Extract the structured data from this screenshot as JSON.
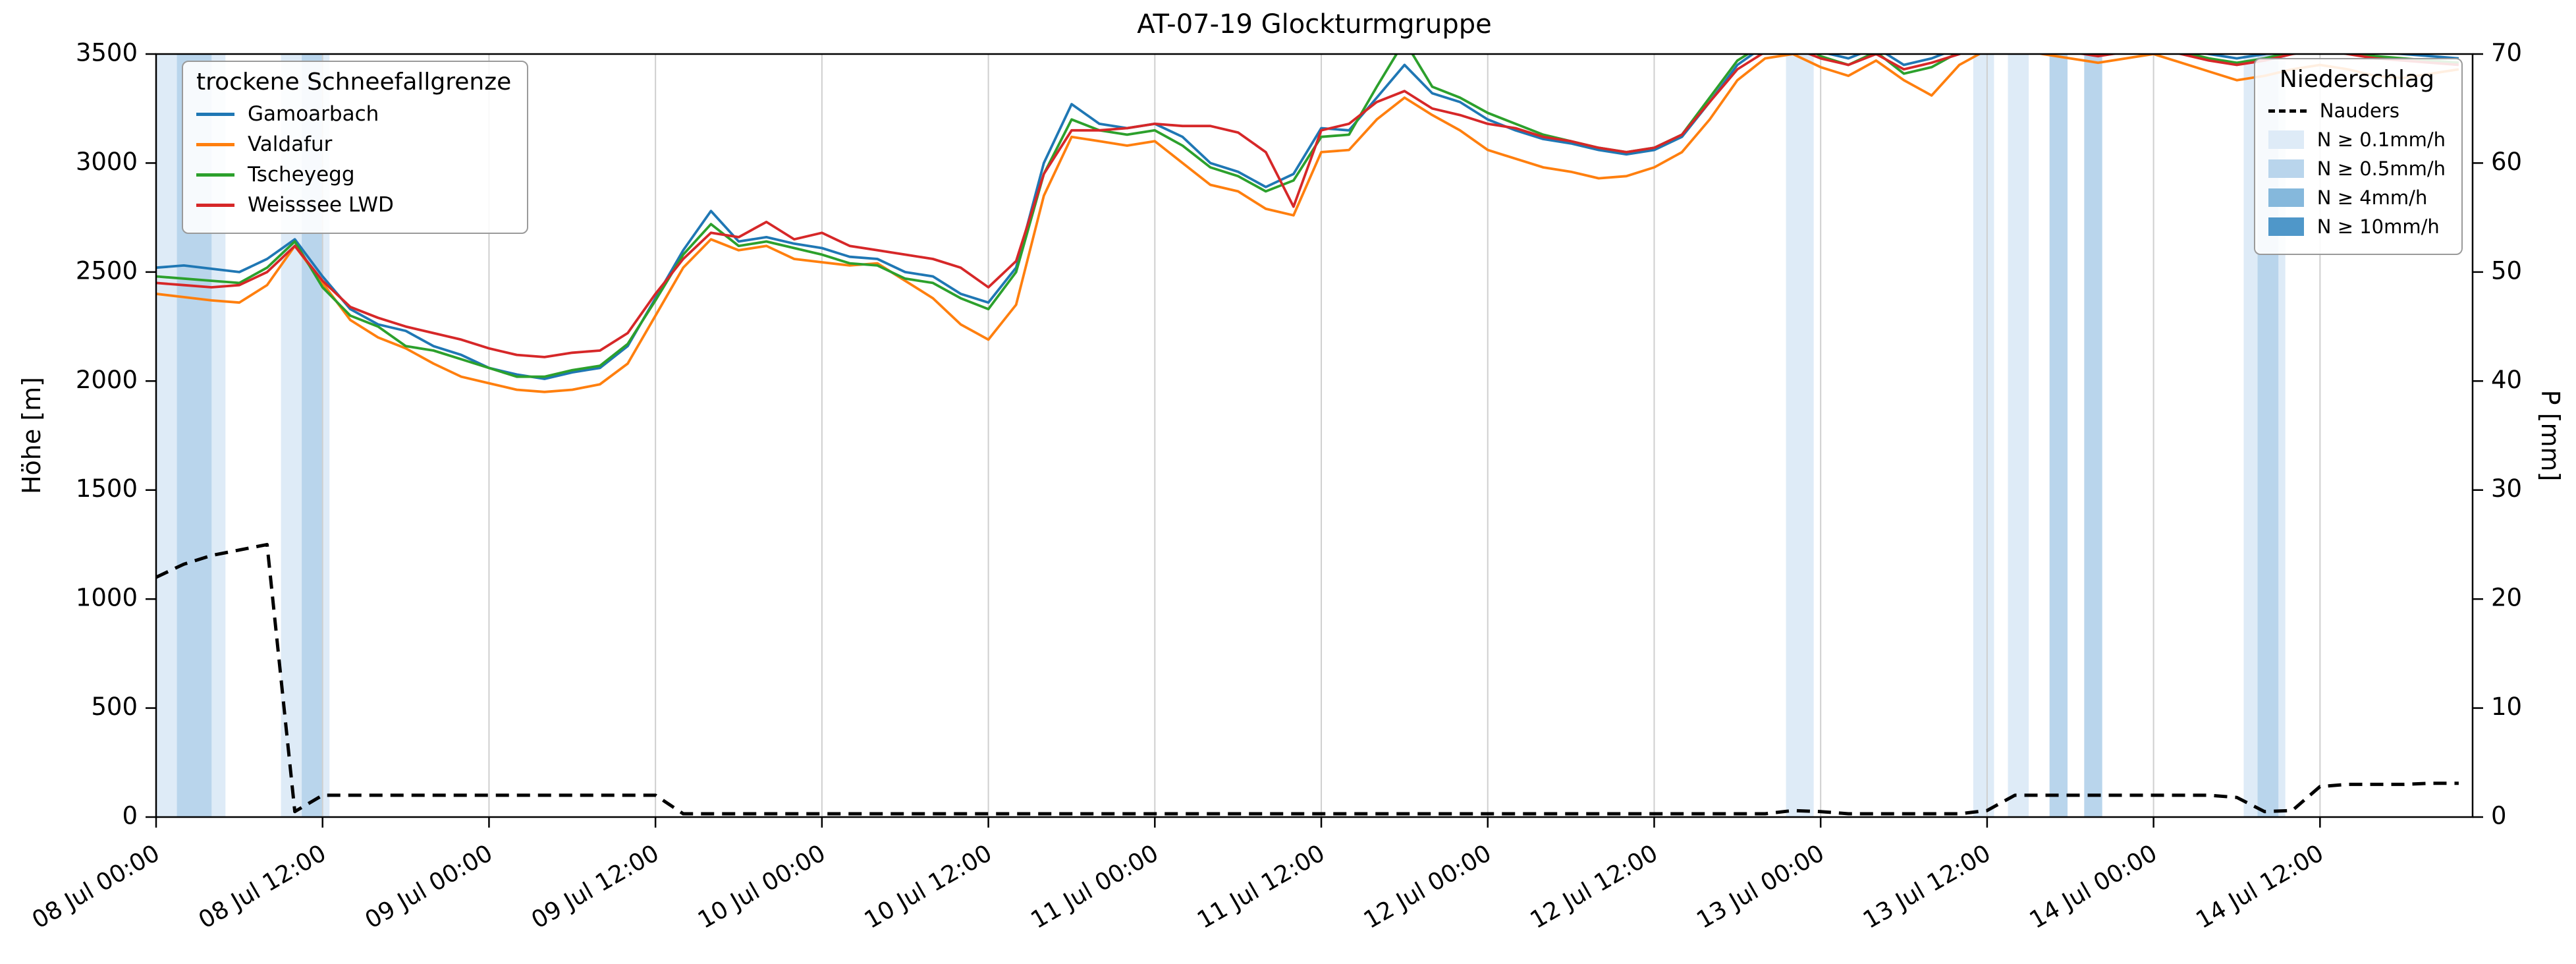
{
  "title": "AT-07-19 Glockturmgruppe",
  "axes": {
    "ylabel_left": "Höhe [m]",
    "ylabel_right": "P [mm]",
    "y_left_range": [
      0,
      3500
    ],
    "y_right_range": [
      0,
      70
    ],
    "y_left_ticks": [
      0,
      500,
      1000,
      1500,
      2000,
      2500,
      3000,
      3500
    ],
    "y_right_ticks": [
      0,
      10,
      20,
      30,
      40,
      50,
      60,
      70
    ],
    "x_range_hours": [
      0,
      167
    ],
    "x_ticks": [
      {
        "h": 0,
        "label": "08 Jul 00:00"
      },
      {
        "h": 12,
        "label": "08 Jul 12:00"
      },
      {
        "h": 24,
        "label": "09 Jul 00:00"
      },
      {
        "h": 36,
        "label": "09 Jul 12:00"
      },
      {
        "h": 48,
        "label": "10 Jul 00:00"
      },
      {
        "h": 60,
        "label": "10 Jul 12:00"
      },
      {
        "h": 72,
        "label": "11 Jul 00:00"
      },
      {
        "h": 84,
        "label": "11 Jul 12:00"
      },
      {
        "h": 96,
        "label": "12 Jul 00:00"
      },
      {
        "h": 108,
        "label": "12 Jul 12:00"
      },
      {
        "h": 120,
        "label": "13 Jul 00:00"
      },
      {
        "h": 132,
        "label": "13 Jul 12:00"
      },
      {
        "h": 144,
        "label": "14 Jul 00:00"
      },
      {
        "h": 156,
        "label": "14 Jul 12:00"
      }
    ]
  },
  "legend_snowline": {
    "title": "trockene Schneefallgrenze",
    "entries": [
      {
        "label": "Gamoarbach",
        "color": "#1f77b4"
      },
      {
        "label": "Valdafur",
        "color": "#ff7f0e"
      },
      {
        "label": "Tscheyegg",
        "color": "#2ca02c"
      },
      {
        "label": "Weisssee LWD",
        "color": "#d62728"
      }
    ]
  },
  "legend_precip": {
    "title": "Niederschlag",
    "entries": [
      {
        "label": "Nauders",
        "type": "dash",
        "color": "#000000"
      },
      {
        "label": "N ≥ 0.1mm/h",
        "type": "patch",
        "color": "#deebf7"
      },
      {
        "label": "N ≥ 0.5mm/h",
        "type": "patch",
        "color": "#b9d5ec"
      },
      {
        "label": "N ≥ 4mm/h",
        "type": "patch",
        "color": "#85b8dc"
      },
      {
        "label": "N ≥ 10mm/h",
        "type": "patch",
        "color": "#4f97c9"
      }
    ]
  },
  "chart_data": {
    "type": "line",
    "title": "AT-07-19 Glockturmgruppe",
    "xlabel": "",
    "ylabel_left": "Höhe [m]",
    "ylabel_right": "P [mm]",
    "grid": "vertical-only",
    "x_unit": "hours since 08 Jul 00:00",
    "x_hours": [
      0,
      2,
      4,
      6,
      8,
      10,
      12,
      14,
      16,
      18,
      20,
      22,
      24,
      26,
      28,
      30,
      32,
      34,
      36,
      38,
      40,
      42,
      44,
      46,
      48,
      50,
      52,
      54,
      56,
      58,
      60,
      62,
      64,
      66,
      68,
      70,
      72,
      74,
      76,
      78,
      80,
      82,
      84,
      86,
      88,
      90,
      92,
      94,
      96,
      98,
      100,
      102,
      104,
      106,
      108,
      110,
      112,
      114,
      116,
      118,
      120,
      122,
      124,
      126,
      128,
      130,
      132,
      134,
      136,
      138,
      140,
      142,
      144,
      146,
      148,
      150,
      152,
      154,
      156,
      158,
      160,
      162,
      164,
      166
    ],
    "series": [
      {
        "name": "Gamoarbach",
        "axis": "left",
        "color": "#1f77b4",
        "style": "solid",
        "values": [
          2520,
          2530,
          2515,
          2500,
          2560,
          2650,
          2480,
          2330,
          2260,
          2230,
          2160,
          2120,
          2060,
          2030,
          2010,
          2040,
          2060,
          2160,
          2380,
          2600,
          2780,
          2640,
          2660,
          2630,
          2610,
          2570,
          2560,
          2500,
          2480,
          2400,
          2360,
          2520,
          3000,
          3270,
          3180,
          3160,
          3180,
          3120,
          3000,
          2960,
          2890,
          2950,
          3160,
          3150,
          3300,
          3450,
          3320,
          3280,
          3200,
          3150,
          3110,
          3090,
          3060,
          3040,
          3060,
          3120,
          3280,
          3450,
          3540,
          3560,
          3510,
          3480,
          3530,
          3450,
          3480,
          3530,
          3570,
          3570,
          3550,
          3530,
          3510,
          3530,
          3550,
          3520,
          3500,
          3480,
          3500,
          3530,
          3550,
          3530,
          3510,
          3500,
          3490,
          3480
        ]
      },
      {
        "name": "Valdafur",
        "axis": "left",
        "color": "#ff7f0e",
        "style": "solid",
        "values": [
          2400,
          2385,
          2370,
          2360,
          2440,
          2620,
          2450,
          2280,
          2200,
          2150,
          2080,
          2020,
          1990,
          1960,
          1950,
          1960,
          1985,
          2080,
          2300,
          2520,
          2650,
          2600,
          2620,
          2560,
          2545,
          2530,
          2540,
          2460,
          2380,
          2260,
          2190,
          2350,
          2850,
          3120,
          3100,
          3080,
          3100,
          3000,
          2900,
          2870,
          2790,
          2760,
          3050,
          3060,
          3200,
          3300,
          3220,
          3150,
          3060,
          3020,
          2980,
          2960,
          2930,
          2940,
          2980,
          3050,
          3200,
          3380,
          3480,
          3500,
          3440,
          3400,
          3470,
          3380,
          3310,
          3450,
          3520,
          3530,
          3500,
          3480,
          3460,
          3480,
          3500,
          3460,
          3420,
          3380,
          3400,
          3430,
          3450,
          3430,
          3400,
          3390,
          3410,
          3430
        ]
      },
      {
        "name": "Tscheyegg",
        "axis": "left",
        "color": "#2ca02c",
        "style": "solid",
        "values": [
          2480,
          2470,
          2460,
          2450,
          2520,
          2640,
          2430,
          2300,
          2250,
          2160,
          2140,
          2100,
          2060,
          2020,
          2020,
          2050,
          2070,
          2170,
          2370,
          2580,
          2720,
          2620,
          2640,
          2610,
          2580,
          2540,
          2530,
          2470,
          2450,
          2380,
          2330,
          2500,
          2950,
          3200,
          3150,
          3130,
          3150,
          3080,
          2980,
          2940,
          2870,
          2920,
          3120,
          3130,
          3350,
          3560,
          3350,
          3300,
          3230,
          3180,
          3130,
          3100,
          3070,
          3050,
          3070,
          3130,
          3300,
          3470,
          3550,
          3570,
          3490,
          3450,
          3510,
          3410,
          3440,
          3510,
          3560,
          3560,
          3540,
          3520,
          3500,
          3520,
          3540,
          3510,
          3480,
          3460,
          3480,
          3510,
          3530,
          3510,
          3490,
          3480,
          3470,
          3460
        ]
      },
      {
        "name": "Weisssee LWD",
        "axis": "left",
        "color": "#d62728",
        "style": "solid",
        "values": [
          2450,
          2440,
          2430,
          2440,
          2500,
          2620,
          2460,
          2340,
          2290,
          2250,
          2220,
          2190,
          2150,
          2120,
          2110,
          2130,
          2140,
          2220,
          2400,
          2560,
          2680,
          2660,
          2730,
          2650,
          2680,
          2620,
          2600,
          2580,
          2560,
          2520,
          2430,
          2550,
          2950,
          3150,
          3150,
          3160,
          3180,
          3170,
          3170,
          3140,
          3050,
          2800,
          3150,
          3180,
          3280,
          3330,
          3250,
          3220,
          3180,
          3160,
          3120,
          3100,
          3070,
          3050,
          3070,
          3130,
          3280,
          3430,
          3510,
          3530,
          3480,
          3450,
          3500,
          3430,
          3460,
          3500,
          3550,
          3550,
          3530,
          3510,
          3490,
          3510,
          3530,
          3500,
          3470,
          3450,
          3470,
          3500,
          3520,
          3500,
          3480,
          3470,
          3460,
          3450
        ]
      },
      {
        "name": "Nauders",
        "axis": "right",
        "color": "#000000",
        "style": "dashed",
        "values": [
          22,
          23.2,
          24,
          24.5,
          25,
          0.5,
          2,
          2,
          2,
          2,
          2,
          2,
          2,
          2,
          2,
          2,
          2,
          2,
          2,
          0.3,
          0.3,
          0.3,
          0.3,
          0.3,
          0.3,
          0.3,
          0.3,
          0.3,
          0.3,
          0.3,
          0.3,
          0.3,
          0.3,
          0.3,
          0.3,
          0.3,
          0.3,
          0.3,
          0.3,
          0.3,
          0.3,
          0.3,
          0.3,
          0.3,
          0.3,
          0.3,
          0.3,
          0.3,
          0.3,
          0.3,
          0.3,
          0.3,
          0.3,
          0.3,
          0.3,
          0.3,
          0.3,
          0.3,
          0.3,
          0.6,
          0.5,
          0.3,
          0.3,
          0.3,
          0.3,
          0.3,
          0.6,
          2,
          2,
          2,
          2,
          2,
          2,
          2,
          2,
          1.8,
          0.5,
          0.6,
          2.8,
          3,
          3,
          3,
          3.1,
          3.1
        ]
      }
    ],
    "precip_bands": [
      {
        "start_h": 0,
        "end_h": 5,
        "level": "0.1"
      },
      {
        "start_h": 1.5,
        "end_h": 4,
        "level": "0.5"
      },
      {
        "start_h": 9,
        "end_h": 12.5,
        "level": "0.1"
      },
      {
        "start_h": 10.5,
        "end_h": 12,
        "level": "0.5"
      },
      {
        "start_h": 117.5,
        "end_h": 119.5,
        "level": "0.1"
      },
      {
        "start_h": 131,
        "end_h": 132.5,
        "level": "0.1"
      },
      {
        "start_h": 133.5,
        "end_h": 135,
        "level": "0.1"
      },
      {
        "start_h": 136.5,
        "end_h": 137.8,
        "level": "0.5"
      },
      {
        "start_h": 139,
        "end_h": 140.3,
        "level": "0.5"
      },
      {
        "start_h": 150.5,
        "end_h": 153.5,
        "level": "0.1"
      },
      {
        "start_h": 151.5,
        "end_h": 153,
        "level": "0.5"
      }
    ],
    "band_colors": {
      "0.1": "#deebf7",
      "0.5": "#b9d5ec",
      "4": "#85b8dc",
      "10": "#4f97c9"
    }
  }
}
